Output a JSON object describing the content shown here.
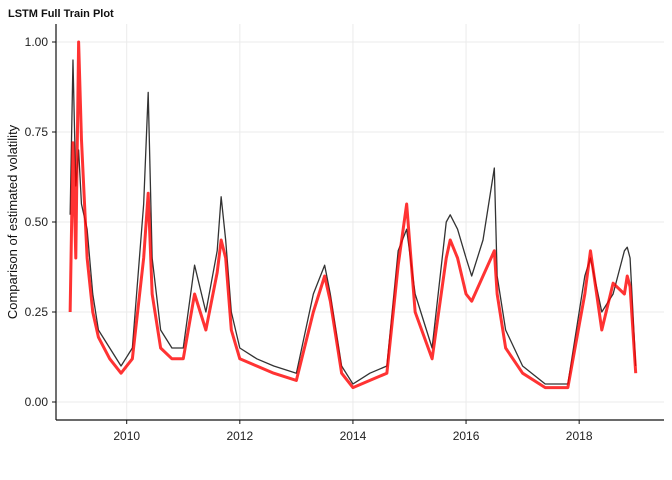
{
  "chart_data": {
    "type": "line",
    "title": "LSTM Full Train Plot",
    "xlabel": "",
    "ylabel": "Comparison of estimated volatility",
    "xlim": [
      2008.75,
      2019.5
    ],
    "ylim": [
      -0.05,
      1.05
    ],
    "x_ticks": [
      2010,
      2012,
      2014,
      2016,
      2018
    ],
    "y_ticks": [
      0.0,
      0.25,
      0.5,
      0.75,
      1.0
    ],
    "y_tick_labels": [
      "0.00",
      "0.25",
      "0.50",
      "0.75",
      "1.00"
    ],
    "grid": true,
    "legend": "none",
    "series": [
      {
        "color": "#333333",
        "x": [
          2009.0,
          2009.05,
          2009.1,
          2009.15,
          2009.2,
          2009.3,
          2009.4,
          2009.5,
          2009.7,
          2009.9,
          2010.1,
          2010.3,
          2010.38,
          2010.45,
          2010.6,
          2010.8,
          2011.0,
          2011.2,
          2011.4,
          2011.6,
          2011.67,
          2011.75,
          2011.85,
          2012.0,
          2012.3,
          2012.6,
          2013.0,
          2013.3,
          2013.5,
          2013.6,
          2013.8,
          2014.0,
          2014.3,
          2014.6,
          2014.8,
          2014.95,
          2015.1,
          2015.4,
          2015.65,
          2015.72,
          2015.85,
          2016.0,
          2016.1,
          2016.3,
          2016.5,
          2016.55,
          2016.7,
          2017.0,
          2017.4,
          2017.8,
          2018.1,
          2018.2,
          2018.4,
          2018.6,
          2018.8,
          2018.85,
          2018.9,
          2019.0
        ],
        "values": [
          0.52,
          0.95,
          0.6,
          0.7,
          0.55,
          0.48,
          0.3,
          0.2,
          0.15,
          0.1,
          0.15,
          0.55,
          0.86,
          0.4,
          0.2,
          0.15,
          0.15,
          0.38,
          0.25,
          0.42,
          0.57,
          0.45,
          0.25,
          0.15,
          0.12,
          0.1,
          0.08,
          0.3,
          0.38,
          0.3,
          0.1,
          0.05,
          0.08,
          0.1,
          0.42,
          0.48,
          0.3,
          0.15,
          0.5,
          0.52,
          0.48,
          0.4,
          0.35,
          0.45,
          0.65,
          0.35,
          0.2,
          0.1,
          0.05,
          0.05,
          0.35,
          0.4,
          0.25,
          0.3,
          0.42,
          0.43,
          0.4,
          0.1
        ]
      },
      {
        "color": "#ff0000",
        "x": [
          2009.0,
          2009.05,
          2009.1,
          2009.15,
          2009.2,
          2009.3,
          2009.4,
          2009.5,
          2009.7,
          2009.9,
          2010.1,
          2010.3,
          2010.38,
          2010.45,
          2010.6,
          2010.8,
          2011.0,
          2011.2,
          2011.4,
          2011.6,
          2011.67,
          2011.75,
          2011.85,
          2012.0,
          2012.3,
          2012.6,
          2013.0,
          2013.3,
          2013.5,
          2013.6,
          2013.8,
          2014.0,
          2014.3,
          2014.6,
          2014.8,
          2014.95,
          2015.1,
          2015.4,
          2015.65,
          2015.72,
          2015.85,
          2016.0,
          2016.1,
          2016.3,
          2016.5,
          2016.55,
          2016.7,
          2017.0,
          2017.4,
          2017.8,
          2018.1,
          2018.2,
          2018.4,
          2018.6,
          2018.8,
          2018.85,
          2018.9,
          2019.0
        ],
        "values": [
          0.25,
          0.72,
          0.4,
          1.0,
          0.73,
          0.4,
          0.25,
          0.18,
          0.12,
          0.08,
          0.12,
          0.4,
          0.58,
          0.3,
          0.15,
          0.12,
          0.12,
          0.3,
          0.2,
          0.36,
          0.45,
          0.4,
          0.2,
          0.12,
          0.1,
          0.08,
          0.06,
          0.25,
          0.35,
          0.28,
          0.08,
          0.04,
          0.06,
          0.08,
          0.38,
          0.55,
          0.25,
          0.12,
          0.4,
          0.45,
          0.4,
          0.3,
          0.28,
          0.35,
          0.42,
          0.3,
          0.15,
          0.08,
          0.04,
          0.04,
          0.3,
          0.42,
          0.2,
          0.33,
          0.3,
          0.35,
          0.32,
          0.08
        ]
      }
    ]
  }
}
